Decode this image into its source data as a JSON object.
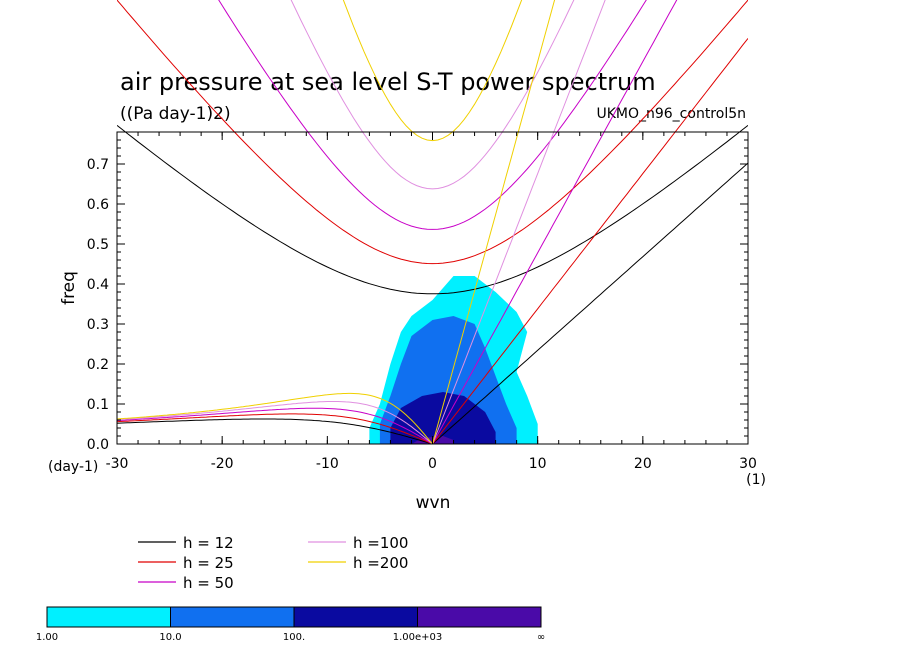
{
  "chart_data": {
    "type": "heatmap",
    "title": "air pressure at sea level S-T power spectrum",
    "subtitle": "((Pa day-1)2)",
    "run_label": "UKMO_n96_control5n",
    "xlabel": "wvn",
    "ylabel": "freq",
    "x_unit": "(1)",
    "y_unit": "(day-1)",
    "xlim": [
      -30,
      30
    ],
    "ylim": [
      0,
      0.78
    ],
    "x_ticks": [
      "-30",
      "-20",
      "-10",
      "0",
      "10",
      "20",
      "30"
    ],
    "y_ticks": [
      "0.0",
      "0.1",
      "0.2",
      "0.3",
      "0.4",
      "0.5",
      "0.6",
      "0.7"
    ],
    "series": [
      {
        "name": "h = 12",
        "color": "#000000",
        "h": 12
      },
      {
        "name": "h = 25",
        "color": "#e00000",
        "h": 25
      },
      {
        "name": "h = 50",
        "color": "#c800c8",
        "h": 50
      },
      {
        "name": "h =100",
        "color": "#e090e0",
        "h": 100
      },
      {
        "name": "h =200",
        "color": "#f0d000",
        "h": 200
      }
    ],
    "colorbar": {
      "labels": [
        "1.00",
        "10.0",
        "100.",
        "1.00e+03",
        "∞"
      ],
      "colors": [
        "#00f0ff",
        "#1070f0",
        "#0a0aa0",
        "#4a0aa8"
      ]
    },
    "heat_regions": [
      {
        "level": 0,
        "points": [
          [
            -6,
            0
          ],
          [
            -6,
            0.04
          ],
          [
            -5,
            0.1
          ],
          [
            -4,
            0.2
          ],
          [
            -3,
            0.28
          ],
          [
            -2,
            0.32
          ],
          [
            0,
            0.36
          ],
          [
            2,
            0.42
          ],
          [
            4,
            0.42
          ],
          [
            6,
            0.38
          ],
          [
            8,
            0.33
          ],
          [
            9,
            0.28
          ],
          [
            8,
            0.18
          ],
          [
            9,
            0.12
          ],
          [
            10,
            0.05
          ],
          [
            10,
            0
          ]
        ]
      },
      {
        "level": 1,
        "points": [
          [
            -5,
            0
          ],
          [
            -5,
            0.05
          ],
          [
            -4,
            0.12
          ],
          [
            -3,
            0.2
          ],
          [
            -2,
            0.27
          ],
          [
            0,
            0.31
          ],
          [
            2,
            0.32
          ],
          [
            4,
            0.3
          ],
          [
            5,
            0.24
          ],
          [
            6,
            0.17
          ],
          [
            7,
            0.1
          ],
          [
            8,
            0.04
          ],
          [
            8,
            0
          ]
        ]
      },
      {
        "level": 2,
        "points": [
          [
            -4,
            0
          ],
          [
            -4,
            0.04
          ],
          [
            -3,
            0.09
          ],
          [
            -1,
            0.12
          ],
          [
            1,
            0.13
          ],
          [
            3,
            0.12
          ],
          [
            5,
            0.08
          ],
          [
            6,
            0.03
          ],
          [
            6,
            0
          ]
        ]
      },
      {
        "level": 3,
        "points": [
          [
            -2,
            0
          ],
          [
            -1,
            0.015
          ],
          [
            1,
            0.02
          ],
          [
            2,
            0.01
          ],
          [
            2,
            0
          ]
        ]
      }
    ]
  }
}
